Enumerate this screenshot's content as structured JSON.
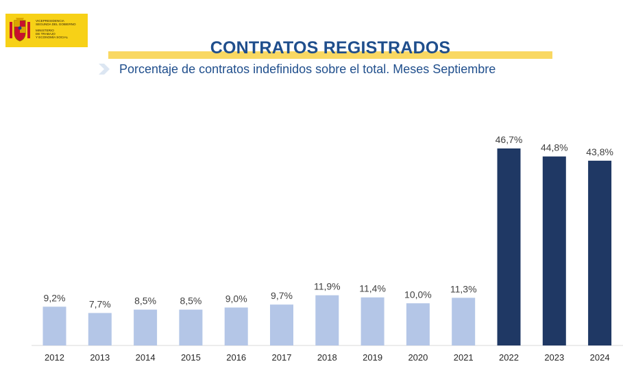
{
  "logo": {
    "line1": "VICEPRESIDENCIA",
    "line2": "SEGUNDA DEL GOBIERNO",
    "line3": "MINISTERIO",
    "line4": "DE TRABAJO",
    "line5": "Y ECONOMÍA SOCIAL"
  },
  "colors": {
    "light_bar": "#b4c6e7",
    "dark_bar": "#1f3864",
    "title": "#1f4e8c",
    "highlight": "#f9d862"
  },
  "chart_data": {
    "type": "bar",
    "title": "CONTRATOS REGISTRADOS",
    "subtitle": "Porcentaje de contratos indefinidos sobre el total. Meses Septiembre",
    "categories": [
      "2012",
      "2013",
      "2014",
      "2015",
      "2016",
      "2017",
      "2018",
      "2019",
      "2020",
      "2021",
      "2022",
      "2023",
      "2024"
    ],
    "values": [
      9.2,
      7.7,
      8.5,
      8.5,
      9.0,
      9.7,
      11.9,
      11.4,
      10.0,
      11.3,
      46.7,
      44.8,
      43.8
    ],
    "labels": [
      "9,2%",
      "7,7%",
      "8,5%",
      "8,5%",
      "9,0%",
      "9,7%",
      "11,9%",
      "11,4%",
      "10,0%",
      "11,3%",
      "46,7%",
      "44,8%",
      "43,8%"
    ],
    "highlighted_from_index": 10,
    "ylim": [
      0,
      50
    ],
    "grid": false,
    "legend": "none"
  }
}
